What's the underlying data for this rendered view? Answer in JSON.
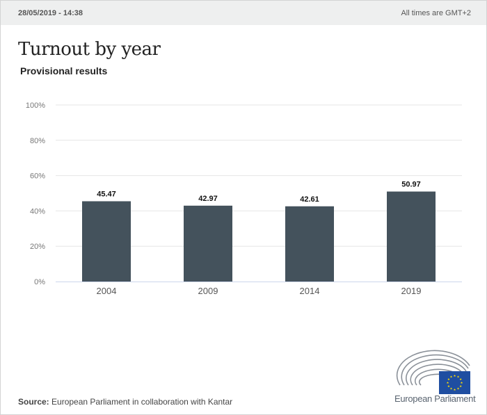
{
  "header": {
    "timestamp": "28/05/2019 - 14:38",
    "timezone_note": "All times are GMT+2"
  },
  "title": "Turnout by year",
  "subtitle": "Provisional results",
  "footer": {
    "source_label": "Source:",
    "source_text": "European Parliament in collaboration with Kantar",
    "logo_text": "European Parliament"
  },
  "colors": {
    "bar": "#44525c",
    "grid": "#e6e6e6",
    "axis": "#ccd6eb",
    "eu_blue": "#1f4ea1",
    "eu_star": "#ffdd00"
  },
  "chart_data": {
    "type": "bar",
    "title": "Turnout by year",
    "subtitle": "Provisional results",
    "categories": [
      "2004",
      "2009",
      "2014",
      "2019"
    ],
    "values": [
      45.47,
      42.97,
      42.61,
      50.97
    ],
    "data_labels": [
      "45.47",
      "42.97",
      "42.61",
      "50.97"
    ],
    "xlabel": "",
    "ylabel": "",
    "ylim": [
      0,
      100
    ],
    "yticks": [
      0,
      20,
      40,
      60,
      80,
      100
    ],
    "ytick_labels": [
      "0%",
      "20%",
      "40%",
      "60%",
      "80%",
      "100%"
    ],
    "grid": true,
    "legend": "none"
  }
}
